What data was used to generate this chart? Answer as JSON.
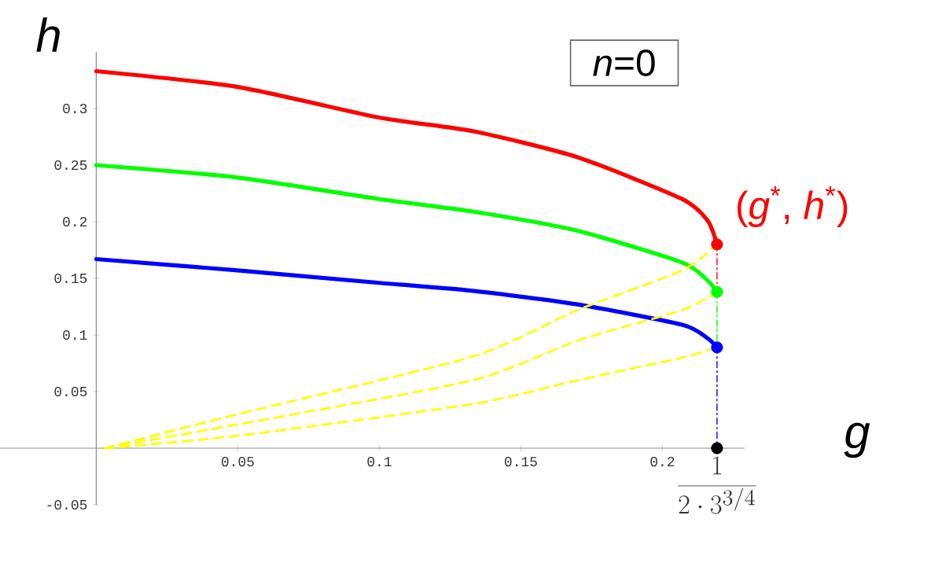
{
  "chart_data": {
    "type": "line",
    "xlabel": "*g*",
    "ylabel": "*h*",
    "xlim": [
      -0.034,
      0.229
    ],
    "ylim": [
      -0.05,
      0.35
    ],
    "xticks": [
      0.05,
      0.1,
      0.15,
      0.2,
      {
        "value": 0.2193,
        "label": "\\frac{1}{2\\cdot 3^{3/4}}"
      }
    ],
    "yticks": [
      -0.05,
      0.05,
      0.1,
      0.15,
      0.2,
      0.25,
      0.3
    ],
    "grid": false,
    "annotations": [
      "*n*=0",
      {
        "text": "(*g*$^{*}$, *h*$^{*}$)",
        "x": 0.2193,
        "y": 0.18
      }
    ],
    "series": [
      {
        "color": "#ff0000",
        "line_style": "solid",
        "x": [
          0,
          0.05,
          0.1,
          0.133,
          0.17,
          0.207,
          0.216,
          0.2193
        ],
        "values": [
          0.333,
          0.319,
          0.292,
          0.28,
          0.257,
          0.22,
          0.201,
          0.18
        ]
      },
      {
        "color": "#00ff00",
        "line_style": "solid",
        "x": [
          0,
          0.05,
          0.1,
          0.133,
          0.17,
          0.207,
          0.216,
          0.2193
        ],
        "values": [
          0.25,
          0.239,
          0.22,
          0.209,
          0.192,
          0.164,
          0.148,
          0.138
        ]
      },
      {
        "color": "#0000ff",
        "line_style": "solid",
        "x": [
          0,
          0.05,
          0.1,
          0.133,
          0.17,
          0.207,
          0.216,
          0.2193
        ],
        "values": [
          0.167,
          0.157,
          0.146,
          0.139,
          0.127,
          0.109,
          0.097,
          0.089
        ]
      },
      {
        "type": "line",
        "color": "#ffff00",
        "line_style": "dashed",
        "x": [
          0.003,
          0.05,
          0.133,
          0.17,
          0.207,
          0.2193
        ],
        "values": [
          0,
          0.03,
          0.081,
          0.122,
          0.157,
          0.18
        ]
      },
      {
        "type": "line",
        "color": "#ffff00",
        "line_style": "dashed",
        "x": [
          0.003,
          0.05,
          0.133,
          0.17,
          0.207,
          0.2193
        ],
        "values": [
          0,
          0.021,
          0.06,
          0.095,
          0.122,
          0.138
        ]
      },
      {
        "type": "line",
        "color": "#ffff00",
        "line_style": "dashed",
        "x": [
          0.003,
          0.05,
          0.133,
          0.17,
          0.207,
          0.2193
        ],
        "values": [
          0,
          0.011,
          0.039,
          0.06,
          0.08,
          0.089
        ]
      },
      {
        "type": "line",
        "color": "#ff0000",
        "line_style": "dotted",
        "x": [
          0.2193,
          0.2193
        ],
        "values": [
          0.18,
          0.138
        ]
      },
      {
        "type": "line",
        "color": "#00ff00",
        "line_style": "dotted",
        "x": [
          0.2193,
          0.2193
        ],
        "values": [
          0.138,
          0.089
        ]
      },
      {
        "type": "line",
        "color": "#0000ff",
        "line_style": "dotted",
        "x": [
          0.2193,
          0.2193
        ],
        "values": [
          0.089,
          0
        ]
      },
      {
        "type": "scatter",
        "color": "#ff0000",
        "marker": "circle",
        "x": [
          0.2193
        ],
        "values": [
          0.18
        ]
      },
      {
        "type": "scatter",
        "color": "#00ff00",
        "marker": "circle",
        "x": [
          0.2193
        ],
        "values": [
          0.138
        ]
      },
      {
        "type": "scatter",
        "color": "#0000ff",
        "marker": "circle",
        "x": [
          0.2193
        ],
        "values": [
          0.089
        ]
      },
      {
        "type": "scatter",
        "color": "#000000",
        "marker": "circle",
        "x": [
          0.2193
        ],
        "values": [
          0
        ]
      }
    ]
  }
}
